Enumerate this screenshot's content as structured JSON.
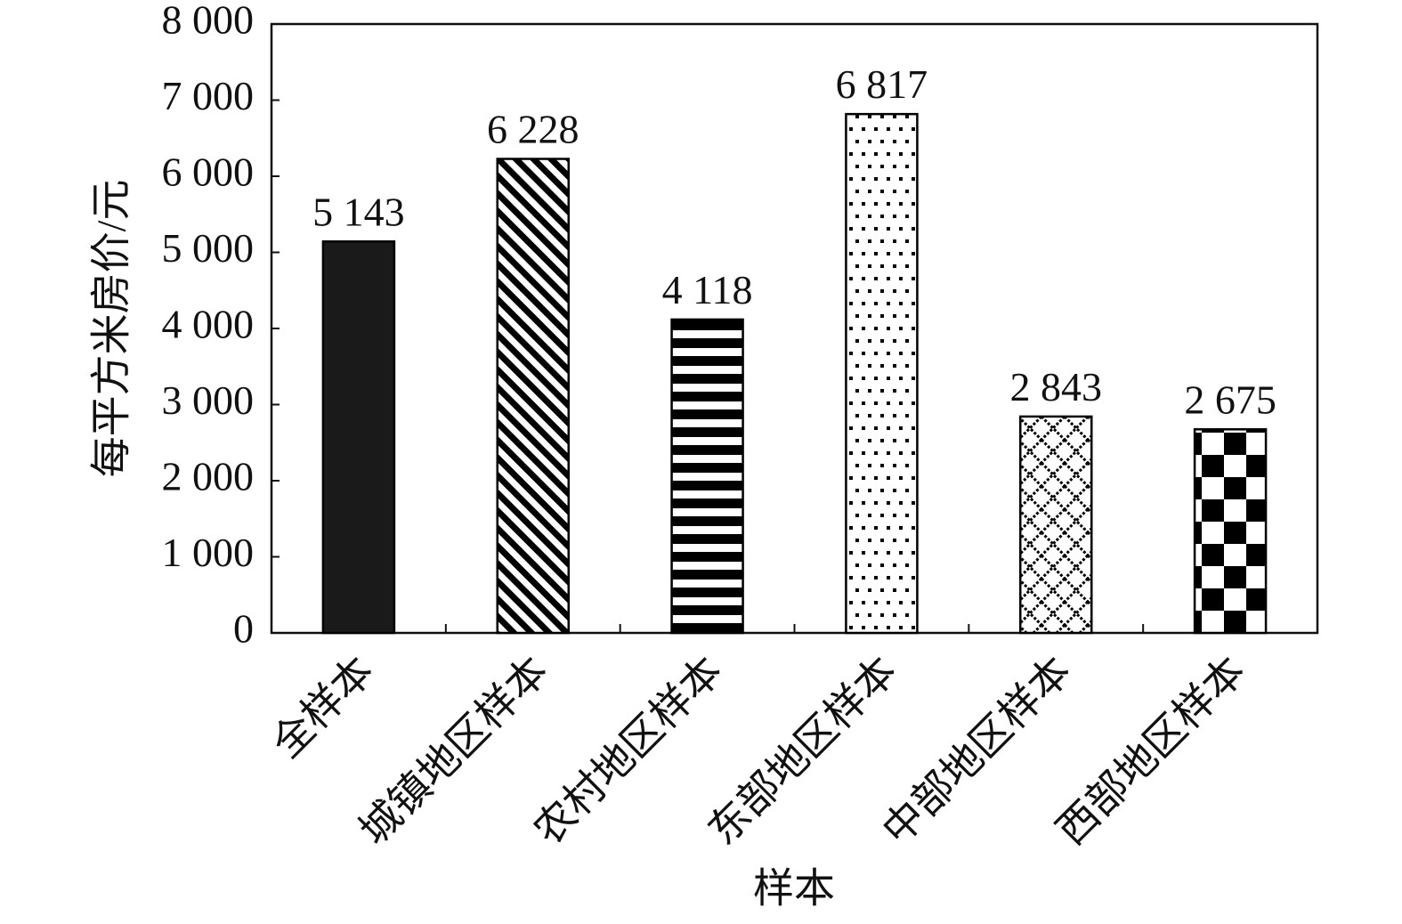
{
  "chart_data": {
    "type": "bar",
    "x_label": "样本",
    "y_label": "每平方米房价/元",
    "categories": [
      "全样本",
      "城镇地区样本",
      "农村地区样本",
      "东部地区样本",
      "中部地区样本",
      "西部地区样本"
    ],
    "values": [
      5143,
      6228,
      4118,
      6817,
      2843,
      2675
    ],
    "value_labels": [
      "5 143",
      "6 228",
      "4 118",
      "6 817",
      "2 843",
      "2 675"
    ],
    "color": "#000000",
    "ylim": [
      0,
      8000
    ],
    "yticks": [
      0,
      {
        "value": 1000,
        "label": "1 000"
      },
      {
        "value": 2000,
        "label": "2 000"
      },
      {
        "value": 3000,
        "label": "3 000"
      },
      {
        "value": 4000,
        "label": "4 000"
      },
      {
        "value": 5000,
        "label": "5 000"
      },
      {
        "value": 6000,
        "label": "6 000"
      },
      {
        "value": 7000,
        "label": "7 000"
      },
      {
        "value": 8000,
        "label": "8 000"
      }
    ],
    "grid": false
  }
}
